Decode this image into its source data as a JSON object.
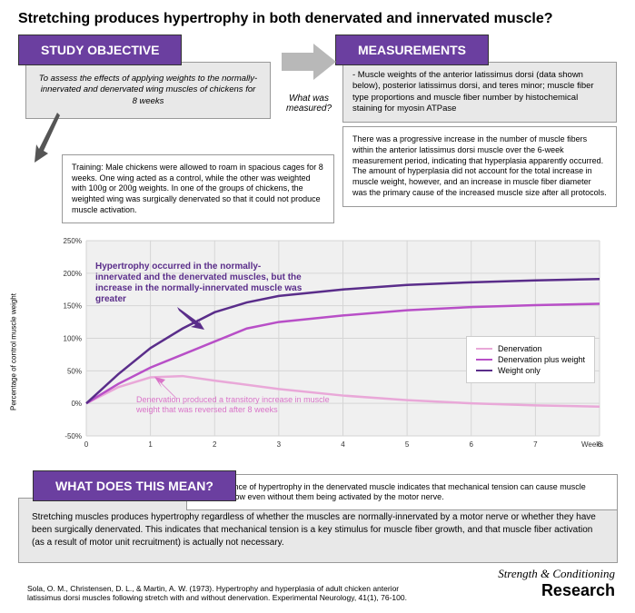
{
  "title": "Stretching produces hypertrophy in both denervated and innervated muscle?",
  "objective": {
    "header": "STUDY OBJECTIVE",
    "text": "To assess the effects of applying weights to the normally-innervated and denervated wing muscles of chickens for 8 weeks"
  },
  "measured_label": "What was measured?",
  "training": "Training: Male chickens were allowed to roam in spacious cages for 8 weeks. One wing acted as a control, while the other was weighted with 100g or 200g weights. In one of the groups of chickens, the weighted wing was surgically denervated so that it could not produce muscle activation.",
  "measurements": {
    "header": "MEASUREMENTS",
    "text": "- Muscle weights of the anterior latissimus dorsi (data shown below), posterior latissimus dorsi, and teres minor; muscle fiber type proportions and muscle fiber number by histochemical staining for myosin ATPase"
  },
  "results_text": "There was a progressive increase in the number of muscle fibers within the anterior latissimus dorsi muscle over the 6-week measurement period, indicating that hyperplasia apparently occurred. The amount of hyperplasia did not account for the total increase in muscle weight, however, and an increase in muscle fiber diameter was the primary cause of the increased muscle size after all protocols.",
  "chart": {
    "type": "line",
    "y_label": "Percentage of control muscle weight",
    "x_label": "Weeks",
    "ylim": [
      -50,
      250
    ],
    "ytick_step": 50,
    "yticks": [
      "-50%",
      "0%",
      "50%",
      "100%",
      "150%",
      "200%",
      "250%"
    ],
    "xlim": [
      0,
      8
    ],
    "xtick_step": 1,
    "xticks": [
      "0",
      "1",
      "2",
      "3",
      "4",
      "5",
      "6",
      "7",
      "8"
    ],
    "background_color": "#f0f0f0",
    "grid_color": "#d5d5d5",
    "series": [
      {
        "name": "Denervation",
        "color": "#e9a8d8",
        "width": 2.5,
        "points": [
          [
            0,
            0
          ],
          [
            0.5,
            25
          ],
          [
            1,
            40
          ],
          [
            1.5,
            42
          ],
          [
            2,
            35
          ],
          [
            3,
            22
          ],
          [
            4,
            12
          ],
          [
            5,
            5
          ],
          [
            6,
            0
          ],
          [
            7,
            -3
          ],
          [
            8,
            -5
          ]
        ]
      },
      {
        "name": "Denervation plus weight",
        "color": "#b84fc7",
        "width": 2.5,
        "points": [
          [
            0,
            0
          ],
          [
            0.5,
            30
          ],
          [
            1,
            55
          ],
          [
            1.5,
            75
          ],
          [
            2,
            95
          ],
          [
            2.5,
            115
          ],
          [
            3,
            125
          ],
          [
            4,
            135
          ],
          [
            5,
            143
          ],
          [
            6,
            148
          ],
          [
            7,
            151
          ],
          [
            8,
            153
          ]
        ]
      },
      {
        "name": "Weight only",
        "color": "#5a2d8a",
        "width": 2.5,
        "points": [
          [
            0,
            0
          ],
          [
            0.5,
            45
          ],
          [
            1,
            85
          ],
          [
            1.5,
            115
          ],
          [
            2,
            140
          ],
          [
            2.5,
            155
          ],
          [
            3,
            165
          ],
          [
            4,
            175
          ],
          [
            5,
            182
          ],
          [
            6,
            186
          ],
          [
            7,
            189
          ],
          [
            8,
            191
          ]
        ]
      }
    ],
    "annotation1": "Hypertrophy occurred in the normally-innervated and the denervated muscles, but the increase in the normally-innervated muscle was greater",
    "annotation2": "Denervation produced a transitory increase in muscle weight that was reversed after 8 weeks"
  },
  "mean": {
    "header": "WHAT DOES THIS MEAN?",
    "note": "The existence of hypertrophy in the denervated muscle indicates that mechanical tension can cause muscle fibers to grow even without them being activated by the motor nerve.",
    "conclusion": "Stretching muscles produces hypertrophy regardless of whether the muscles are normally-innervated by a motor nerve or whether they have been surgically denervated. This indicates that mechanical tension is a key stimulus for muscle fiber growth, and that muscle fiber activation (as a result of motor unit recruitment) is actually not necessary."
  },
  "citation": "Sola, O. M., Christensen, D. L., & Martin, A. W. (1973). Hypertrophy and hyperplasia of adult chicken anterior latissimus dorsi muscles following stretch with and without denervation. Experimental Neurology, 41(1), 76-100.",
  "logo": {
    "top": "Strength & Conditioning",
    "bottom": "Research"
  },
  "colors": {
    "purple": "#6b3fa0",
    "gray_bg": "#e8e8e8"
  }
}
